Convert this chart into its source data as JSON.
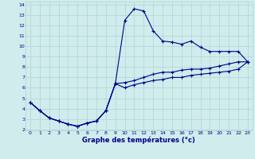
{
  "xlabel": "Graphe des températures (°c)",
  "x": [
    0,
    1,
    2,
    3,
    4,
    5,
    6,
    7,
    8,
    9,
    10,
    11,
    12,
    13,
    14,
    15,
    16,
    17,
    18,
    19,
    20,
    21,
    22,
    23
  ],
  "line1": [
    4.6,
    3.8,
    3.1,
    2.8,
    2.5,
    2.3,
    2.6,
    2.8,
    3.8,
    6.4,
    12.5,
    13.6,
    13.4,
    11.5,
    10.5,
    10.4,
    10.2,
    10.5,
    9.9,
    9.5,
    9.5,
    9.5,
    9.5,
    8.5
  ],
  "line2": [
    4.6,
    3.8,
    3.1,
    2.8,
    2.5,
    2.3,
    2.6,
    2.8,
    3.8,
    6.4,
    6.5,
    6.7,
    7.0,
    7.3,
    7.5,
    7.5,
    7.7,
    7.8,
    7.8,
    7.9,
    8.1,
    8.3,
    8.5,
    8.5
  ],
  "line3": [
    4.6,
    3.8,
    3.1,
    2.8,
    2.5,
    2.3,
    2.6,
    2.8,
    3.8,
    6.4,
    6.0,
    6.3,
    6.5,
    6.7,
    6.8,
    7.0,
    7.0,
    7.2,
    7.3,
    7.4,
    7.5,
    7.6,
    7.8,
    8.5
  ],
  "line_color": "#00008b",
  "bg_color": "#d0ecec",
  "grid_color": "#b0d4d4",
  "text_color": "#00008b",
  "ylim": [
    2,
    14
  ],
  "yticks": [
    2,
    3,
    4,
    5,
    6,
    7,
    8,
    9,
    10,
    11,
    12,
    13,
    14
  ],
  "xticks": [
    0,
    1,
    2,
    3,
    4,
    5,
    6,
    7,
    8,
    9,
    10,
    11,
    12,
    13,
    14,
    15,
    16,
    17,
    18,
    19,
    20,
    21,
    22,
    23
  ]
}
